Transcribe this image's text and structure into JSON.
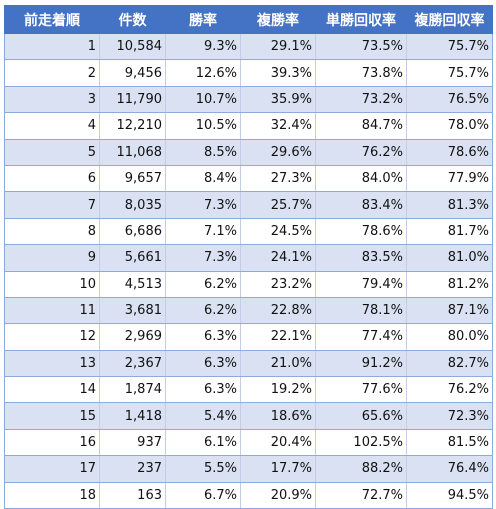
{
  "columns": [
    "前走着順",
    "件数",
    "勝率",
    "複勝率",
    "単勝回収率",
    "複勝回収率"
  ],
  "rows": [
    [
      "1",
      "10,584",
      "9.3%",
      "29.1%",
      "73.5%",
      "75.7%"
    ],
    [
      "2",
      "9,456",
      "12.6%",
      "39.3%",
      "73.8%",
      "75.7%"
    ],
    [
      "3",
      "11,790",
      "10.7%",
      "35.9%",
      "73.2%",
      "76.5%"
    ],
    [
      "4",
      "12,210",
      "10.5%",
      "32.4%",
      "84.7%",
      "78.0%"
    ],
    [
      "5",
      "11,068",
      "8.5%",
      "29.6%",
      "76.2%",
      "78.6%"
    ],
    [
      "6",
      "9,657",
      "8.4%",
      "27.3%",
      "84.0%",
      "77.9%"
    ],
    [
      "7",
      "8,035",
      "7.3%",
      "25.7%",
      "83.4%",
      "81.3%"
    ],
    [
      "8",
      "6,686",
      "7.1%",
      "24.5%",
      "78.6%",
      "81.7%"
    ],
    [
      "9",
      "5,661",
      "7.3%",
      "24.1%",
      "83.5%",
      "81.0%"
    ],
    [
      "10",
      "4,513",
      "6.2%",
      "23.2%",
      "79.4%",
      "81.2%"
    ],
    [
      "11",
      "3,681",
      "6.2%",
      "22.8%",
      "78.1%",
      "87.1%"
    ],
    [
      "12",
      "2,969",
      "6.3%",
      "22.1%",
      "77.4%",
      "80.0%"
    ],
    [
      "13",
      "2,367",
      "6.3%",
      "21.0%",
      "91.2%",
      "82.7%"
    ],
    [
      "14",
      "1,874",
      "6.3%",
      "19.2%",
      "77.6%",
      "76.2%"
    ],
    [
      "15",
      "1,418",
      "5.4%",
      "18.6%",
      "65.6%",
      "72.3%"
    ],
    [
      "16",
      "937",
      "6.1%",
      "20.4%",
      "102.5%",
      "81.5%"
    ],
    [
      "17",
      "237",
      "5.5%",
      "17.7%",
      "88.2%",
      "76.4%"
    ],
    [
      "18",
      "163",
      "6.7%",
      "20.9%",
      "72.7%",
      "94.5%"
    ]
  ],
  "colors": {
    "header": "#4472c4",
    "band": "#d9e1f2",
    "row": "#ffffff"
  }
}
